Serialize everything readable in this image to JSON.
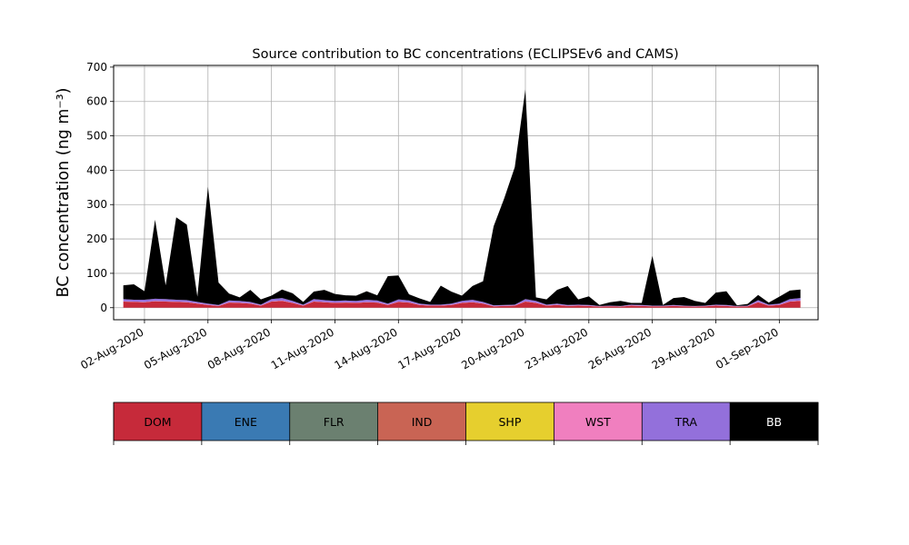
{
  "chart_data": {
    "type": "area",
    "title": "Source contribution to BC concentrations (ECLIPSEv6 and CAMS)",
    "ylabel": "BC concentration (ng m⁻³)",
    "xlabel": "",
    "ylim": [
      -35,
      705
    ],
    "xlim": [
      "2020-07-31 13:00",
      "2020-09-02 20:00"
    ],
    "yticks": [
      0,
      100,
      200,
      300,
      400,
      500,
      600,
      700
    ],
    "xticks": [
      "02-Aug-2020",
      "05-Aug-2020",
      "08-Aug-2020",
      "11-Aug-2020",
      "14-Aug-2020",
      "17-Aug-2020",
      "20-Aug-2020",
      "23-Aug-2020",
      "26-Aug-2020",
      "29-Aug-2020",
      "01-Sep-2020"
    ],
    "xtick_dates": [
      "2020-08-02",
      "2020-08-05",
      "2020-08-08",
      "2020-08-11",
      "2020-08-14",
      "2020-08-17",
      "2020-08-20",
      "2020-08-23",
      "2020-08-26",
      "2020-08-29",
      "2020-09-01"
    ],
    "grid": true,
    "x": [
      "2020-08-01 00:00",
      "2020-08-01 12:00",
      "2020-08-02 00:00",
      "2020-08-02 12:00",
      "2020-08-03 00:00",
      "2020-08-03 12:00",
      "2020-08-04 00:00",
      "2020-08-04 12:00",
      "2020-08-05 00:00",
      "2020-08-05 12:00",
      "2020-08-06 00:00",
      "2020-08-06 12:00",
      "2020-08-07 00:00",
      "2020-08-07 12:00",
      "2020-08-08 00:00",
      "2020-08-08 12:00",
      "2020-08-09 00:00",
      "2020-08-09 12:00",
      "2020-08-10 00:00",
      "2020-08-10 12:00",
      "2020-08-11 00:00",
      "2020-08-11 12:00",
      "2020-08-12 00:00",
      "2020-08-12 12:00",
      "2020-08-13 00:00",
      "2020-08-13 12:00",
      "2020-08-14 00:00",
      "2020-08-14 12:00",
      "2020-08-15 00:00",
      "2020-08-15 12:00",
      "2020-08-16 00:00",
      "2020-08-16 12:00",
      "2020-08-17 00:00",
      "2020-08-17 12:00",
      "2020-08-18 00:00",
      "2020-08-18 12:00",
      "2020-08-19 00:00",
      "2020-08-19 12:00",
      "2020-08-20 00:00",
      "2020-08-20 12:00",
      "2020-08-21 00:00",
      "2020-08-21 12:00",
      "2020-08-22 00:00",
      "2020-08-22 12:00",
      "2020-08-23 00:00",
      "2020-08-23 12:00",
      "2020-08-24 00:00",
      "2020-08-24 12:00",
      "2020-08-25 00:00",
      "2020-08-25 12:00",
      "2020-08-26 00:00",
      "2020-08-26 12:00",
      "2020-08-27 00:00",
      "2020-08-27 12:00",
      "2020-08-28 00:00",
      "2020-08-28 12:00",
      "2020-08-29 00:00",
      "2020-08-29 12:00",
      "2020-08-30 00:00",
      "2020-08-30 12:00",
      "2020-08-31 00:00",
      "2020-08-31 12:00",
      "2020-09-01 00:00",
      "2020-09-01 12:00",
      "2020-09-02 00:00"
    ],
    "series": [
      {
        "name": "DOM",
        "color": "#c62a3a",
        "values": [
          18,
          17,
          16,
          19,
          18,
          17,
          16,
          12,
          8,
          5,
          15,
          14,
          12,
          6,
          18,
          20,
          14,
          6,
          18,
          16,
          14,
          15,
          14,
          16,
          15,
          8,
          17,
          15,
          8,
          6,
          6,
          8,
          14,
          16,
          12,
          4,
          5,
          6,
          18,
          14,
          6,
          8,
          5,
          6,
          5,
          3,
          4,
          3,
          6,
          5,
          4,
          4,
          5,
          4,
          3,
          4,
          6,
          5,
          3,
          4,
          16,
          6,
          8,
          18,
          20
        ]
      },
      {
        "name": "ENE",
        "color": "#3a7ab3",
        "values": [
          0,
          0,
          0,
          0,
          0,
          0,
          0,
          0,
          0,
          0,
          0,
          0,
          0,
          0,
          0,
          0,
          0,
          0,
          0,
          0,
          0,
          0,
          0,
          0,
          0,
          0,
          0,
          0,
          0,
          0,
          0,
          0,
          0,
          0,
          0,
          0,
          0,
          0,
          0,
          0,
          0,
          0,
          0,
          0,
          0,
          0,
          0,
          0,
          0,
          0,
          0,
          0,
          0,
          0,
          0,
          0,
          0,
          0,
          0,
          0,
          0,
          0,
          0,
          0,
          0
        ]
      },
      {
        "name": "FLR",
        "color": "#6b8070",
        "values": [
          0,
          0,
          0,
          0,
          0,
          0,
          0,
          0,
          0,
          0,
          0,
          0,
          0,
          0,
          0,
          0,
          0,
          0,
          0,
          0,
          0,
          0,
          0,
          0,
          0,
          0,
          0,
          0,
          0,
          0,
          0,
          0,
          0,
          0,
          0,
          0,
          0,
          0,
          0,
          0,
          0,
          0,
          0,
          0,
          0,
          0,
          0,
          0,
          0,
          0,
          0,
          0,
          0,
          0,
          0,
          0,
          0,
          0,
          0,
          0,
          0,
          0,
          0,
          0,
          0
        ]
      },
      {
        "name": "IND",
        "color": "#c96454",
        "values": [
          0,
          0,
          0,
          0,
          0,
          0,
          0,
          0,
          0,
          0,
          0,
          0,
          0,
          0,
          0,
          0,
          0,
          0,
          0,
          0,
          0,
          0,
          0,
          0,
          0,
          0,
          0,
          0,
          0,
          0,
          0,
          0,
          0,
          0,
          0,
          0,
          0,
          0,
          0,
          0,
          0,
          0,
          0,
          0,
          0,
          0,
          0,
          0,
          0,
          0,
          0,
          0,
          0,
          0,
          0,
          0,
          0,
          0,
          0,
          0,
          0,
          0,
          0,
          0,
          0
        ]
      },
      {
        "name": "SHP",
        "color": "#e6cf2e",
        "values": [
          0,
          0,
          0,
          0,
          0,
          0,
          0,
          0,
          0,
          0,
          0,
          0,
          0,
          0,
          0,
          0,
          0,
          0,
          0,
          0,
          0,
          0,
          0,
          0,
          0,
          0,
          0,
          0,
          0,
          0,
          0,
          0,
          0,
          0,
          0,
          0,
          0,
          0,
          0,
          0,
          0,
          0,
          0,
          0,
          0,
          0,
          0,
          0,
          0,
          0,
          0,
          0,
          0,
          0,
          0,
          0,
          0,
          0,
          0,
          0,
          0,
          0,
          0,
          0,
          0
        ]
      },
      {
        "name": "WST",
        "color": "#f07fbf",
        "values": [
          1,
          1,
          1,
          1,
          1,
          1,
          1,
          1,
          1,
          1,
          1,
          1,
          1,
          1,
          1,
          1,
          1,
          1,
          1,
          1,
          1,
          1,
          1,
          1,
          1,
          1,
          1,
          1,
          1,
          1,
          1,
          1,
          1,
          1,
          1,
          1,
          1,
          1,
          1,
          1,
          1,
          1,
          1,
          1,
          1,
          1,
          1,
          1,
          1,
          1,
          1,
          1,
          1,
          1,
          1,
          1,
          1,
          1,
          1,
          1,
          1,
          1,
          1,
          1,
          1
        ]
      },
      {
        "name": "TRA",
        "color": "#9370db",
        "values": [
          6,
          5,
          6,
          6,
          6,
          5,
          5,
          4,
          3,
          2,
          5,
          5,
          4,
          2,
          6,
          7,
          5,
          2,
          6,
          5,
          5,
          5,
          5,
          6,
          5,
          3,
          6,
          5,
          3,
          2,
          2,
          3,
          5,
          6,
          4,
          2,
          2,
          2,
          6,
          5,
          2,
          3,
          2,
          2,
          2,
          1,
          1,
          1,
          2,
          2,
          1,
          1,
          2,
          1,
          1,
          1,
          2,
          2,
          1,
          1,
          5,
          2,
          3,
          6,
          7
        ]
      },
      {
        "name": "BB",
        "color": "#000000",
        "values": [
          40,
          45,
          25,
          230,
          40,
          240,
          220,
          15,
          340,
          65,
          20,
          10,
          35,
          15,
          10,
          25,
          22,
          8,
          22,
          30,
          20,
          15,
          15,
          25,
          15,
          80,
          70,
          18,
          15,
          8,
          55,
          35,
          15,
          40,
          60,
          230,
          310,
          400,
          610,
          10,
          15,
          40,
          55,
          15,
          25,
          3,
          10,
          15,
          5,
          6,
          145,
          2,
          20,
          25,
          15,
          8,
          35,
          40,
          2,
          5,
          15,
          6,
          20,
          25,
          25
        ]
      }
    ],
    "legend": [
      "DOM",
      "ENE",
      "FLR",
      "IND",
      "SHP",
      "WST",
      "TRA",
      "BB"
    ],
    "legend_placement": "bottom colorbar"
  }
}
